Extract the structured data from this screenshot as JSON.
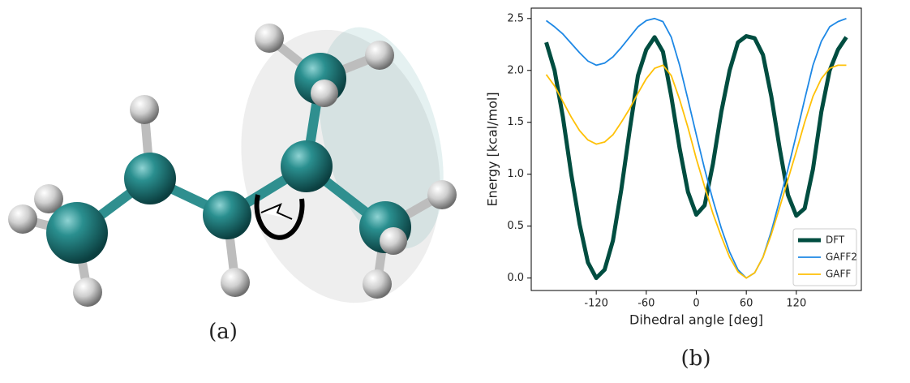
{
  "molecule_caption": "(a)",
  "chart_data": {
    "type": "line",
    "caption": "(b)",
    "xlabel": "Dihedral angle [deg]",
    "ylabel": "Energy [kcal/mol]",
    "x": [
      -180,
      -170,
      -160,
      -150,
      -140,
      -130,
      -120,
      -110,
      -100,
      -90,
      -80,
      -70,
      -60,
      -50,
      -40,
      -30,
      -20,
      -10,
      0,
      10,
      20,
      30,
      40,
      50,
      60,
      70,
      80,
      90,
      100,
      110,
      120,
      130,
      140,
      150,
      160,
      170,
      180
    ],
    "series": [
      {
        "name": "DFT",
        "color": "#004d40",
        "width": 5,
        "values": [
          2.27,
          2.0,
          1.55,
          1.0,
          0.52,
          0.15,
          0.0,
          0.08,
          0.36,
          0.85,
          1.42,
          1.95,
          2.2,
          2.32,
          2.18,
          1.75,
          1.25,
          0.83,
          0.61,
          0.7,
          1.1,
          1.6,
          2.0,
          2.27,
          2.33,
          2.31,
          2.15,
          1.75,
          1.25,
          0.8,
          0.6,
          0.67,
          1.05,
          1.6,
          2.0,
          2.2,
          2.32
        ]
      },
      {
        "name": "GAFF2",
        "color": "#1e88e5",
        "width": 1.8,
        "values": [
          2.48,
          2.42,
          2.35,
          2.26,
          2.17,
          2.09,
          2.05,
          2.07,
          2.13,
          2.22,
          2.32,
          2.42,
          2.48,
          2.5,
          2.47,
          2.32,
          2.05,
          1.72,
          1.38,
          1.05,
          0.75,
          0.48,
          0.25,
          0.08,
          0.0,
          0.05,
          0.2,
          0.45,
          0.75,
          1.05,
          1.38,
          1.72,
          2.05,
          2.28,
          2.42,
          2.47,
          2.5
        ]
      },
      {
        "name": "GAFF",
        "color": "#ffc107",
        "width": 1.8,
        "values": [
          1.96,
          1.85,
          1.7,
          1.55,
          1.42,
          1.33,
          1.29,
          1.31,
          1.38,
          1.5,
          1.63,
          1.78,
          1.92,
          2.02,
          2.05,
          1.95,
          1.72,
          1.45,
          1.15,
          0.88,
          0.62,
          0.4,
          0.2,
          0.06,
          0.0,
          0.05,
          0.2,
          0.42,
          0.68,
          0.95,
          1.22,
          1.5,
          1.75,
          1.92,
          2.02,
          2.05,
          2.05
        ]
      }
    ],
    "xlim": [
      -198,
      198
    ],
    "ylim": [
      -0.12,
      2.6
    ],
    "xticks": [
      -120,
      -60,
      0,
      60,
      120
    ],
    "yticks": [
      {
        "value": 0,
        "label": "0.0"
      },
      0.5,
      {
        "value": 1,
        "label": "1.0"
      },
      1.5,
      {
        "value": 2,
        "label": "2.0"
      },
      2.5
    ],
    "legend": "lower right"
  }
}
